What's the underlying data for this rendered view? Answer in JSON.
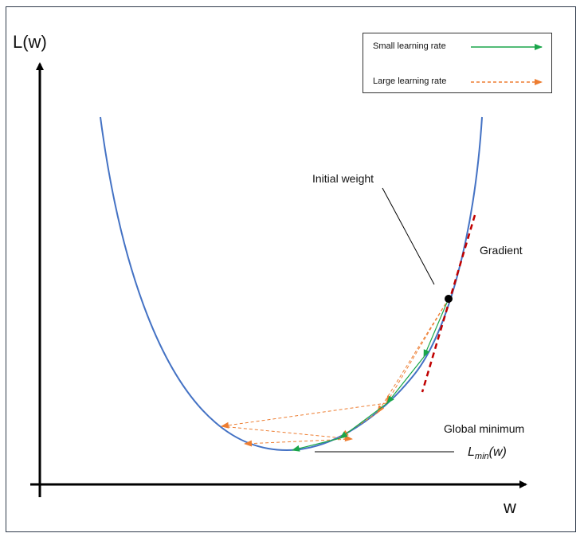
{
  "y_axis_label": "L(w)",
  "x_axis_label": "w",
  "legend": {
    "small_label": "Small learning rate",
    "large_label": "Large learning rate"
  },
  "annotations": {
    "initial_weight": "Initial weight",
    "gradient": "Gradient",
    "global_minimum": "Global minimum",
    "lmin_main": "L",
    "lmin_sub": "min",
    "lmin_arg": "(w)"
  },
  "colors": {
    "curve": "#4472c4",
    "small_lr": "#1aa64a",
    "large_lr": "#ed7d31",
    "gradient": "#c00000",
    "axes": "#000000"
  }
}
